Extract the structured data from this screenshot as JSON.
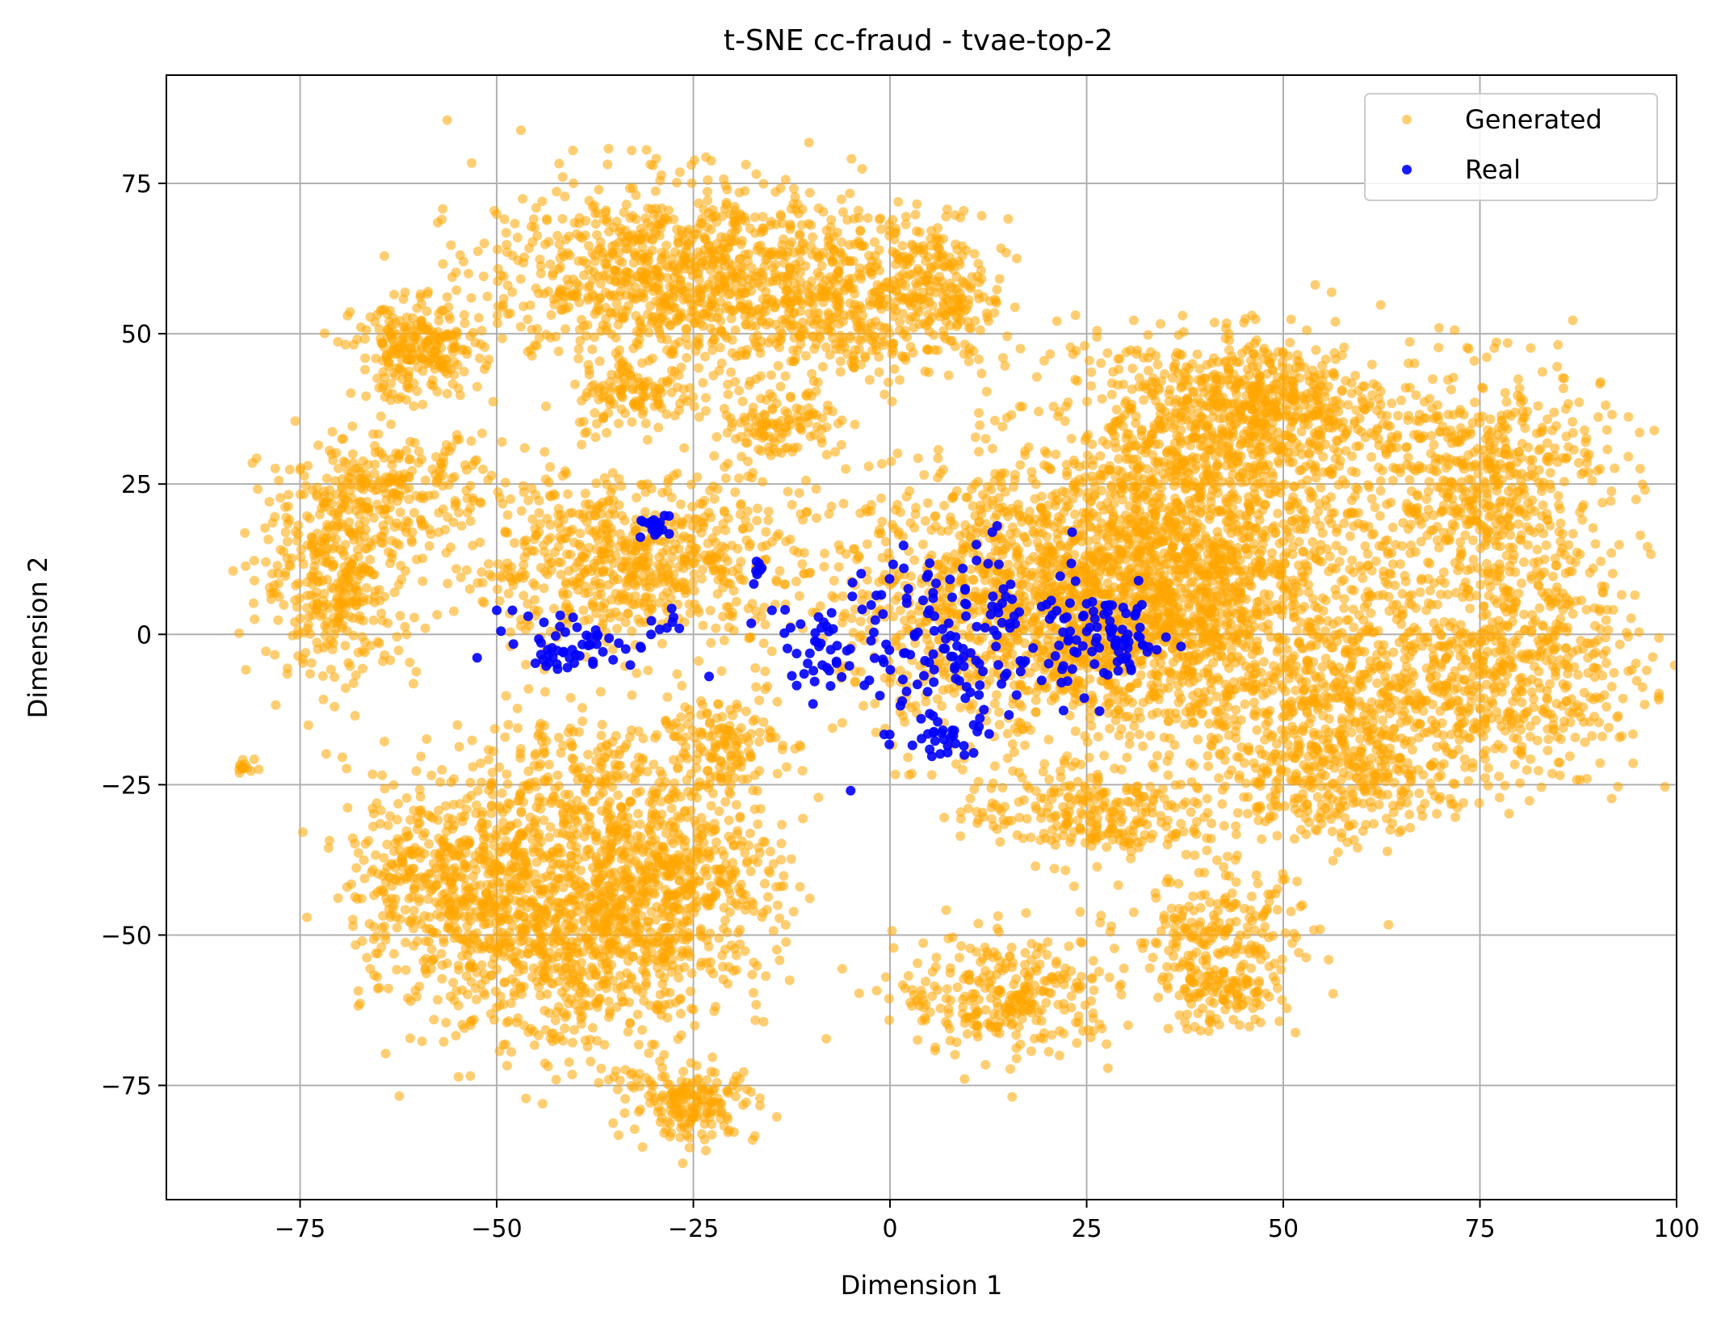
{
  "chart_data": {
    "type": "scatter",
    "title": "t-SNE cc-fraud - tvae-top-2",
    "xlabel": "Dimension 1",
    "ylabel": "Dimension 2",
    "xlim": [
      -92,
      100
    ],
    "ylim": [
      -94,
      93
    ],
    "xticks": [
      -75,
      -50,
      -25,
      0,
      25,
      50,
      75,
      100
    ],
    "yticks": [
      -75,
      -50,
      -25,
      0,
      25,
      50,
      75
    ],
    "xtick_labels": [
      "−75",
      "−50",
      "−25",
      "0",
      "25",
      "50",
      "75",
      "100"
    ],
    "ytick_labels": [
      "−75",
      "−50",
      "−25",
      "0",
      "25",
      "50",
      "75"
    ],
    "grid": true,
    "legend_position": "top-right",
    "series": [
      {
        "name": "Generated",
        "color": "#FFA500",
        "opacity": 0.55,
        "clusters": [
          {
            "cx": -33,
            "cy": 12,
            "sx": 11,
            "sy": 7,
            "n": 700
          },
          {
            "cx": -70,
            "cy": 10,
            "sx": 5,
            "sy": 9,
            "n": 400
          },
          {
            "cx": -63,
            "cy": 25,
            "sx": 6,
            "sy": 4,
            "n": 200
          },
          {
            "cx": -60,
            "cy": 47,
            "sx": 4,
            "sy": 4,
            "n": 250
          },
          {
            "cx": -40,
            "cy": -25,
            "sx": 8,
            "sy": 6,
            "n": 250
          },
          {
            "cx": -22,
            "cy": -18,
            "sx": 4,
            "sy": 4,
            "n": 160
          },
          {
            "cx": -28,
            "cy": 60,
            "sx": 12,
            "sy": 8,
            "n": 900
          },
          {
            "cx": -5,
            "cy": 55,
            "sx": 10,
            "sy": 7,
            "n": 500
          },
          {
            "cx": 6,
            "cy": 58,
            "sx": 3,
            "sy": 6,
            "n": 120
          },
          {
            "cx": -32,
            "cy": 40,
            "sx": 4,
            "sy": 3,
            "n": 120
          },
          {
            "cx": -15,
            "cy": 35,
            "sx": 4,
            "sy": 3,
            "n": 120
          },
          {
            "cx": 20,
            "cy": 5,
            "sx": 13,
            "sy": 12,
            "n": 1500
          },
          {
            "cx": 40,
            "cy": 10,
            "sx": 11,
            "sy": 13,
            "n": 1300
          },
          {
            "cx": 42,
            "cy": 35,
            "sx": 10,
            "sy": 7,
            "n": 500
          },
          {
            "cx": 75,
            "cy": 25,
            "sx": 8,
            "sy": 10,
            "n": 600
          },
          {
            "cx": 80,
            "cy": -5,
            "sx": 8,
            "sy": 9,
            "n": 500
          },
          {
            "cx": 60,
            "cy": -12,
            "sx": 9,
            "sy": 9,
            "n": 500
          },
          {
            "cx": 50,
            "cy": 40,
            "sx": 7,
            "sy": 5,
            "n": 250
          },
          {
            "cx": 55,
            "cy": -25,
            "sx": 8,
            "sy": 5,
            "n": 250
          },
          {
            "cx": 25,
            "cy": -30,
            "sx": 8,
            "sy": 4,
            "n": 250
          },
          {
            "cx": -57,
            "cy": -40,
            "sx": 6,
            "sy": 8,
            "n": 400
          },
          {
            "cx": -40,
            "cy": -50,
            "sx": 10,
            "sy": 10,
            "n": 1000
          },
          {
            "cx": -28,
            "cy": -40,
            "sx": 7,
            "sy": 7,
            "n": 400
          },
          {
            "cx": -25,
            "cy": -78,
            "sx": 4,
            "sy": 3,
            "n": 180
          },
          {
            "cx": 15,
            "cy": -60,
            "sx": 7,
            "sy": 5,
            "n": 300
          },
          {
            "cx": 42,
            "cy": -50,
            "sx": 6,
            "sy": 5,
            "n": 200
          },
          {
            "cx": 42,
            "cy": -60,
            "sx": 4,
            "sy": 3,
            "n": 120
          },
          {
            "cx": -82,
            "cy": -22,
            "sx": 0.8,
            "sy": 0.8,
            "n": 15
          }
        ]
      },
      {
        "name": "Real",
        "color": "#0000FF",
        "opacity": 0.9,
        "clusters": [
          {
            "cx": 10,
            "cy": 0,
            "sx": 9,
            "sy": 7,
            "n": 170
          },
          {
            "cx": 28,
            "cy": -1,
            "sx": 4,
            "sy": 4,
            "n": 70
          },
          {
            "cx": -40,
            "cy": -2,
            "sx": 4,
            "sy": 2,
            "n": 50
          },
          {
            "cx": -30,
            "cy": 18,
            "sx": 1,
            "sy": 1,
            "n": 22
          },
          {
            "cx": -29,
            "cy": 2,
            "sx": 1,
            "sy": 1,
            "n": 8
          },
          {
            "cx": -17,
            "cy": 11,
            "sx": 0.7,
            "sy": 0.7,
            "n": 6
          },
          {
            "cx": -10,
            "cy": -3,
            "sx": 3,
            "sy": 3,
            "n": 30
          },
          {
            "cx": 7,
            "cy": -17,
            "sx": 3,
            "sy": 2,
            "n": 30
          }
        ],
        "points": [
          [
            -5,
            -26
          ],
          [
            -23,
            -7
          ],
          [
            -50,
            4
          ],
          [
            -48,
            4
          ],
          [
            -46,
            3
          ],
          [
            -44,
            2
          ],
          [
            -15,
            4
          ],
          [
            37,
            -2
          ],
          [
            13,
            17
          ]
        ]
      }
    ]
  }
}
